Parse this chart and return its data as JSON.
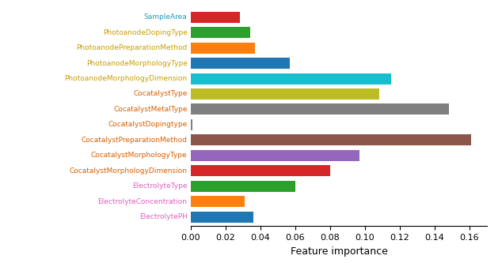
{
  "categories": [
    "SampleArea",
    "PhotoanodeDopingType",
    "PhotoanodePreparationMethod",
    "PhotoanodeMorphologyType",
    "PhotoanodeMorphologyDimension",
    "CocatalystType",
    "CocatalystMetalType",
    "CocatalystDopingtype",
    "CocatalystPreparationMethod",
    "CocatalystMorphologyType",
    "CocatalystMorphologyDimension",
    "ElectrolyteType",
    "ElectrolyteConcentration",
    "ElectrolytePH"
  ],
  "values": [
    0.028,
    0.034,
    0.037,
    0.057,
    0.115,
    0.108,
    0.148,
    0.001,
    0.161,
    0.097,
    0.08,
    0.06,
    0.031,
    0.036
  ],
  "bar_colors": [
    "#d62728",
    "#2ca02c",
    "#ff7f0e",
    "#1f77b4",
    "#17becf",
    "#bcbd22",
    "#7f7f7f",
    "#7f7f7f",
    "#8c564b",
    "#9467bd",
    "#d62728",
    "#2ca02c",
    "#ff7f0e",
    "#1f77b4"
  ],
  "label_colors": [
    "#1f9cbf",
    "#c8a000",
    "#c8a000",
    "#c8a000",
    "#c8a000",
    "#d86000",
    "#d86000",
    "#d86000",
    "#d86000",
    "#d86000",
    "#d86000",
    "#e060c0",
    "#e060c0",
    "#e060c0"
  ],
  "xlabel": "Feature importance",
  "xlim": [
    0,
    0.17
  ],
  "xticks": [
    0.0,
    0.02,
    0.04,
    0.06,
    0.08,
    0.1,
    0.12,
    0.14,
    0.16
  ],
  "figsize": [
    6.34,
    3.33
  ],
  "dpi": 100,
  "label_fontsize": 6.5,
  "xlabel_fontsize": 9,
  "xtick_fontsize": 8,
  "bar_height": 0.72
}
